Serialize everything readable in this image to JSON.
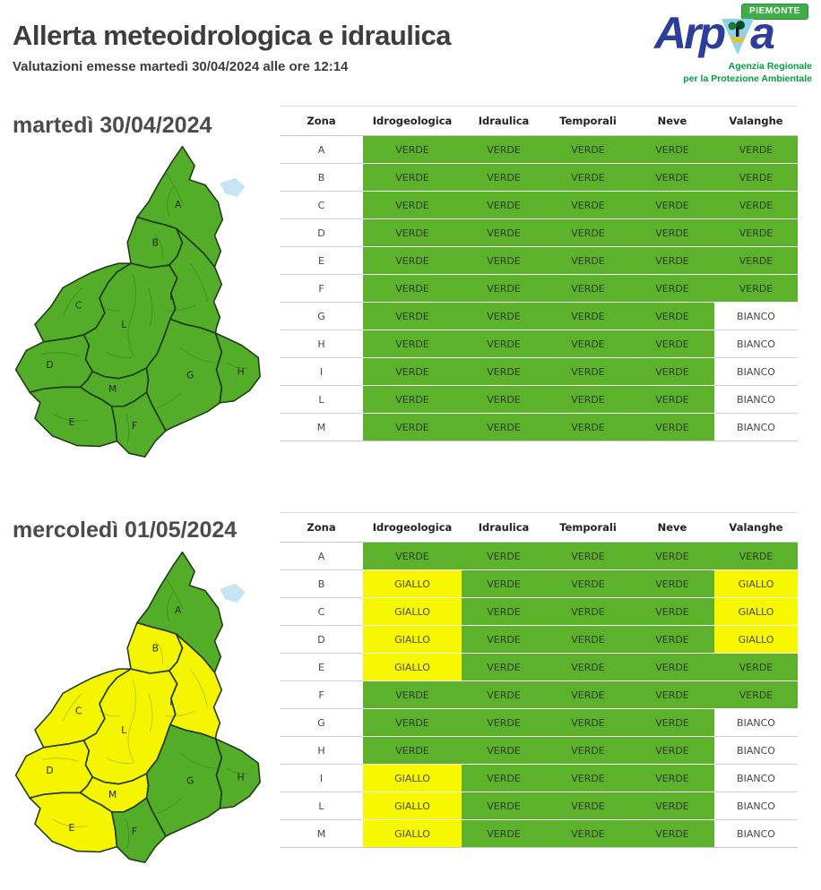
{
  "header": {
    "title": "Allerta meteoidrologica e idraulica",
    "subtitle": "Valutazioni emesse martedì 30/04/2024 alle ore 12:14",
    "logo": {
      "brand_left": "Arp",
      "brand_right": "a",
      "region_badge": "PIEMONTE",
      "byline_line1": "Agenzia Regionale",
      "byline_line2": "per la Protezione Ambientale",
      "brand_color": "#2b3e99",
      "badge_color": "#3fae49",
      "byline_color": "#00a13f",
      "triangle_color": "#8ed2ef"
    }
  },
  "levels": {
    "VERDE": {
      "bg": "#5cb22b"
    },
    "GIALLO": {
      "bg": "#f7f700"
    },
    "BIANCO": {
      "bg": "#ffffff"
    }
  },
  "map_colors": {
    "VERDE": "#53ad28",
    "GIALLO": "#f5f500",
    "lake": "#c5e5f4"
  },
  "sections": [
    {
      "day_title": "martedì 30/04/2024",
      "columns": [
        "Zona",
        "Idrogeologica",
        "Idraulica",
        "Temporali",
        "Neve",
        "Valanghe"
      ],
      "rows": [
        {
          "zona": "A",
          "values": [
            "VERDE",
            "VERDE",
            "VERDE",
            "VERDE",
            "VERDE"
          ]
        },
        {
          "zona": "B",
          "values": [
            "VERDE",
            "VERDE",
            "VERDE",
            "VERDE",
            "VERDE"
          ]
        },
        {
          "zona": "C",
          "values": [
            "VERDE",
            "VERDE",
            "VERDE",
            "VERDE",
            "VERDE"
          ]
        },
        {
          "zona": "D",
          "values": [
            "VERDE",
            "VERDE",
            "VERDE",
            "VERDE",
            "VERDE"
          ]
        },
        {
          "zona": "E",
          "values": [
            "VERDE",
            "VERDE",
            "VERDE",
            "VERDE",
            "VERDE"
          ]
        },
        {
          "zona": "F",
          "values": [
            "VERDE",
            "VERDE",
            "VERDE",
            "VERDE",
            "VERDE"
          ]
        },
        {
          "zona": "G",
          "values": [
            "VERDE",
            "VERDE",
            "VERDE",
            "VERDE",
            "BIANCO"
          ]
        },
        {
          "zona": "H",
          "values": [
            "VERDE",
            "VERDE",
            "VERDE",
            "VERDE",
            "BIANCO"
          ]
        },
        {
          "zona": "I",
          "values": [
            "VERDE",
            "VERDE",
            "VERDE",
            "VERDE",
            "BIANCO"
          ]
        },
        {
          "zona": "L",
          "values": [
            "VERDE",
            "VERDE",
            "VERDE",
            "VERDE",
            "BIANCO"
          ]
        },
        {
          "zona": "M",
          "values": [
            "VERDE",
            "VERDE",
            "VERDE",
            "VERDE",
            "BIANCO"
          ]
        }
      ],
      "map_zones": {
        "A": "VERDE",
        "B": "VERDE",
        "C": "VERDE",
        "D": "VERDE",
        "E": "VERDE",
        "F": "VERDE",
        "G": "VERDE",
        "H": "VERDE",
        "I": "VERDE",
        "L": "VERDE",
        "M": "VERDE"
      }
    },
    {
      "day_title": "mercoledì 01/05/2024",
      "columns": [
        "Zona",
        "Idrogeologica",
        "Idraulica",
        "Temporali",
        "Neve",
        "Valanghe"
      ],
      "rows": [
        {
          "zona": "A",
          "values": [
            "VERDE",
            "VERDE",
            "VERDE",
            "VERDE",
            "VERDE"
          ]
        },
        {
          "zona": "B",
          "values": [
            "GIALLO",
            "VERDE",
            "VERDE",
            "VERDE",
            "GIALLO"
          ]
        },
        {
          "zona": "C",
          "values": [
            "GIALLO",
            "VERDE",
            "VERDE",
            "VERDE",
            "GIALLO"
          ]
        },
        {
          "zona": "D",
          "values": [
            "GIALLO",
            "VERDE",
            "VERDE",
            "VERDE",
            "GIALLO"
          ]
        },
        {
          "zona": "E",
          "values": [
            "GIALLO",
            "VERDE",
            "VERDE",
            "VERDE",
            "VERDE"
          ]
        },
        {
          "zona": "F",
          "values": [
            "VERDE",
            "VERDE",
            "VERDE",
            "VERDE",
            "VERDE"
          ]
        },
        {
          "zona": "G",
          "values": [
            "VERDE",
            "VERDE",
            "VERDE",
            "VERDE",
            "BIANCO"
          ]
        },
        {
          "zona": "H",
          "values": [
            "VERDE",
            "VERDE",
            "VERDE",
            "VERDE",
            "BIANCO"
          ]
        },
        {
          "zona": "I",
          "values": [
            "GIALLO",
            "VERDE",
            "VERDE",
            "VERDE",
            "BIANCO"
          ]
        },
        {
          "zona": "L",
          "values": [
            "GIALLO",
            "VERDE",
            "VERDE",
            "VERDE",
            "BIANCO"
          ]
        },
        {
          "zona": "M",
          "values": [
            "GIALLO",
            "VERDE",
            "VERDE",
            "VERDE",
            "BIANCO"
          ]
        }
      ],
      "map_zones": {
        "A": "VERDE",
        "B": "GIALLO",
        "C": "GIALLO",
        "D": "GIALLO",
        "E": "GIALLO",
        "F": "VERDE",
        "G": "VERDE",
        "H": "VERDE",
        "I": "GIALLO",
        "L": "GIALLO",
        "M": "GIALLO"
      }
    }
  ]
}
